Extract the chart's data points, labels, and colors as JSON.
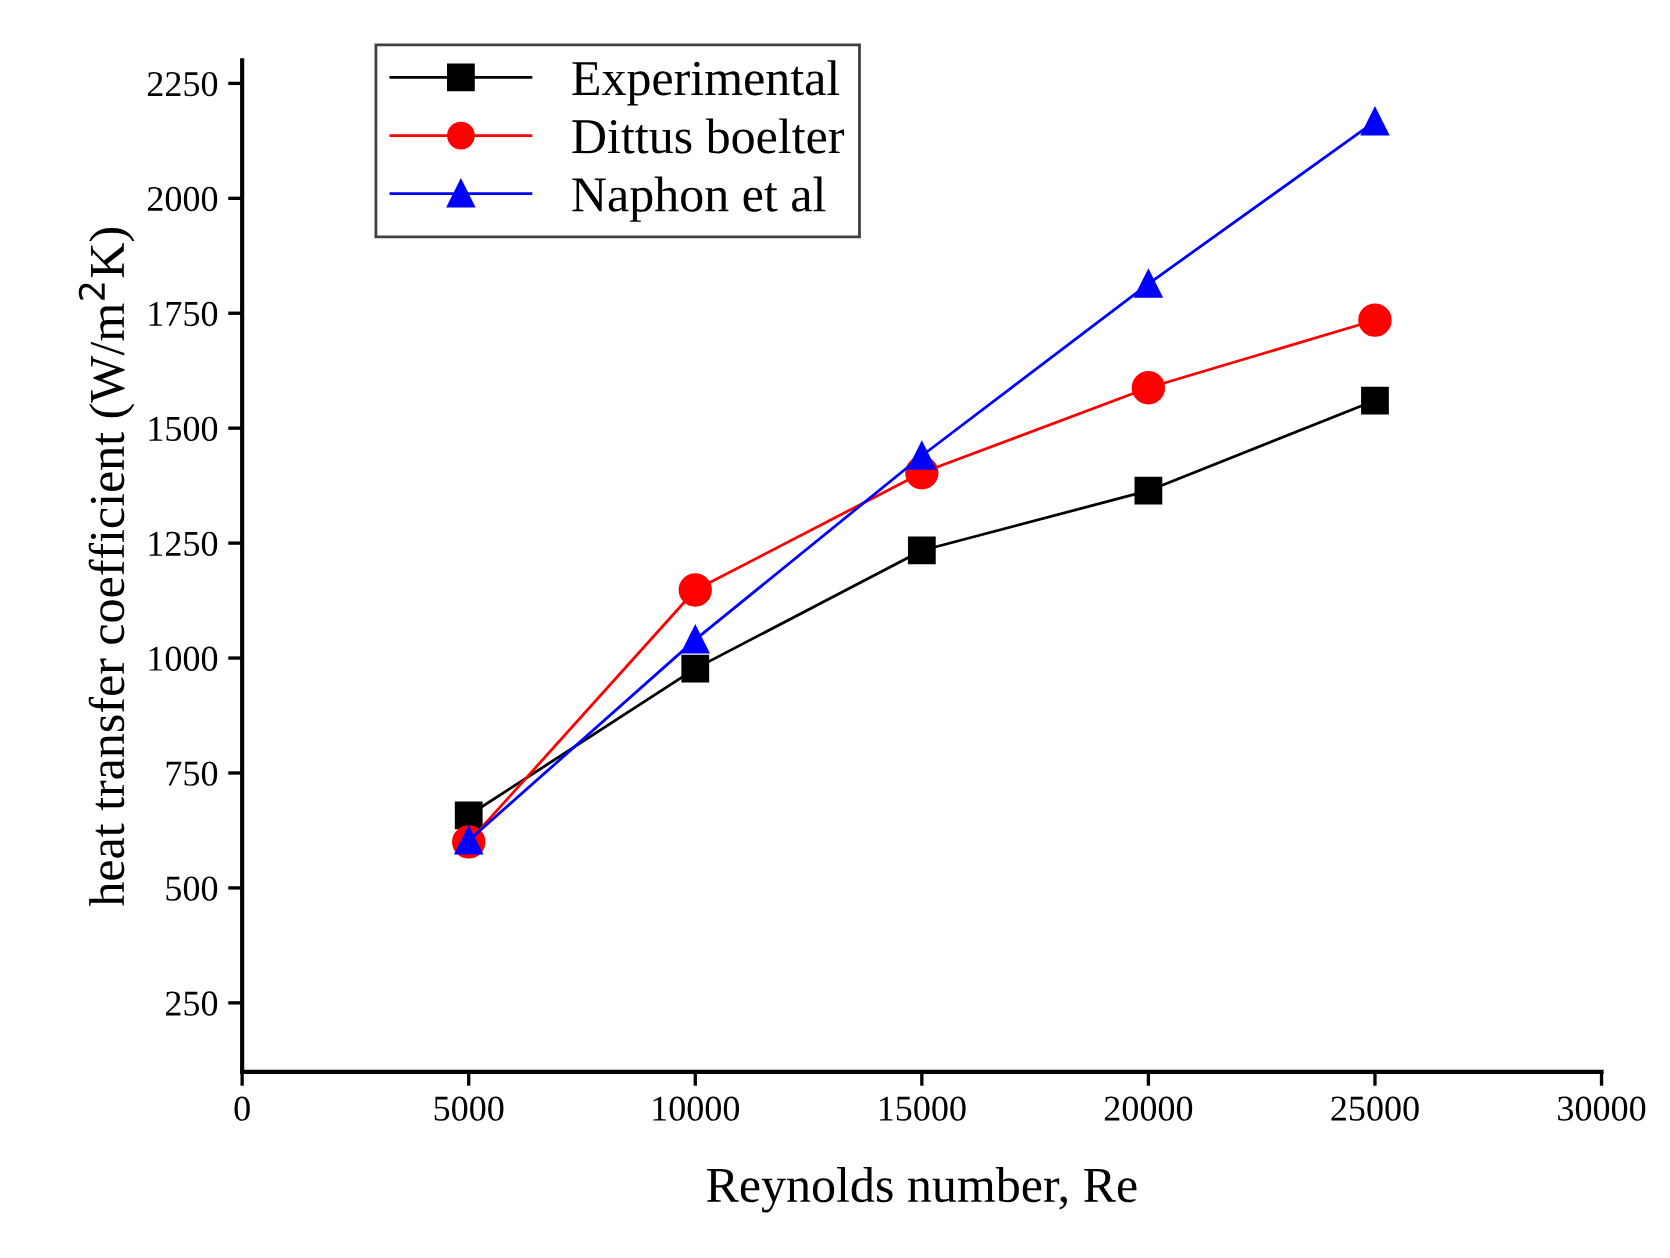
{
  "chart_data": {
    "type": "line",
    "xlabel": "Reynolds number, Re",
    "ylabel": "heat transfer coefficient (W/m$^{2}$K)",
    "x": [
      5000,
      10000,
      15000,
      20000,
      25000
    ],
    "series": [
      {
        "name": "Experimental",
        "color": "#000000",
        "marker": "square",
        "values": [
          658,
          977,
          1234,
          1364,
          1560
        ]
      },
      {
        "name": "Dittus boelter",
        "color": "#ff0000",
        "marker": "circle",
        "values": [
          600,
          1148,
          1403,
          1588,
          1735
        ]
      },
      {
        "name": "Naphon et al",
        "color": "#0000ff",
        "marker": "triangle",
        "values": [
          603,
          1040,
          1440,
          1814,
          2167
        ]
      }
    ],
    "xlim": [
      0,
      30000
    ],
    "xticks": [
      0,
      5000,
      10000,
      15000,
      20000,
      25000,
      30000
    ],
    "ylim": [
      100,
      2300
    ],
    "yticks": [
      250,
      500,
      750,
      1000,
      1250,
      1500,
      1750,
      2000,
      2250
    ],
    "grid": false,
    "legend": "top left",
    "line_style": "solid"
  }
}
